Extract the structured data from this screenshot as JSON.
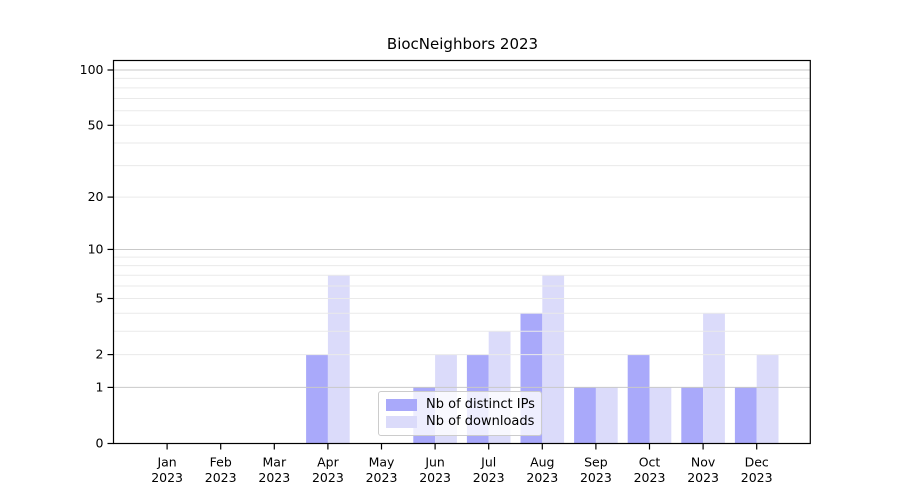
{
  "chart_data": {
    "type": "bar",
    "title": "BiocNeighbors 2023",
    "year_label": "2023",
    "categories": [
      "Jan",
      "Feb",
      "Mar",
      "Apr",
      "May",
      "Jun",
      "Jul",
      "Aug",
      "Sep",
      "Oct",
      "Nov",
      "Dec"
    ],
    "series": [
      {
        "name": "Nb of distinct IPs",
        "color": "#a9a9fa",
        "values": [
          0,
          0,
          0,
          2,
          0,
          1,
          2,
          4,
          1,
          2,
          1,
          1
        ]
      },
      {
        "name": "Nb of downloads",
        "color": "#dbdbfa",
        "values": [
          0,
          0,
          0,
          7,
          0,
          2,
          3,
          7,
          1,
          1,
          4,
          2
        ]
      }
    ],
    "yticks": [
      0,
      1,
      2,
      5,
      10,
      20,
      50,
      100
    ],
    "major_gridlines": [
      1,
      10,
      100
    ],
    "minor_gridlines": [
      2,
      3,
      4,
      5,
      6,
      7,
      8,
      9,
      20,
      30,
      40,
      50,
      60,
      70,
      80,
      90
    ],
    "scale": "log1p",
    "ylim": [
      0,
      113
    ],
    "grid": "horizontal",
    "legend_position": "bottom-center",
    "colors": {
      "axis": "#000000",
      "text": "#000000",
      "major_grid": "#c9c9c9",
      "minor_grid": "#eaeaea",
      "legend_border": "#cccccc"
    }
  }
}
